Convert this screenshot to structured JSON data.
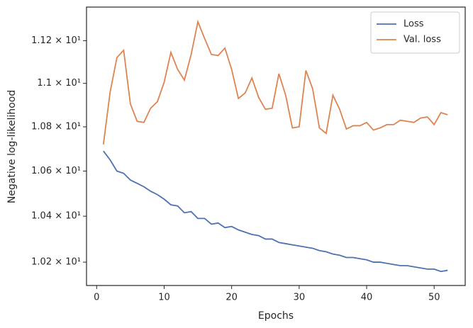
{
  "chart_data": {
    "type": "line",
    "xlabel": "Epochs",
    "ylabel": "Negative log-likelihood",
    "x": [
      1,
      2,
      3,
      4,
      5,
      6,
      7,
      8,
      9,
      10,
      11,
      12,
      13,
      14,
      15,
      16,
      17,
      18,
      19,
      20,
      21,
      22,
      23,
      24,
      25,
      26,
      27,
      28,
      29,
      30,
      31,
      32,
      33,
      34,
      35,
      36,
      37,
      38,
      39,
      40,
      41,
      42,
      43,
      44,
      45,
      46,
      47,
      48,
      49,
      50,
      51,
      52
    ],
    "series": [
      {
        "name": "Loss",
        "color": "#4c72b0",
        "values": [
          10.69,
          10.65,
          10.6,
          10.59,
          10.56,
          10.545,
          10.53,
          10.51,
          10.495,
          10.475,
          10.45,
          10.445,
          10.415,
          10.42,
          10.39,
          10.39,
          10.365,
          10.37,
          10.35,
          10.355,
          10.34,
          10.33,
          10.32,
          10.315,
          10.3,
          10.3,
          10.285,
          10.28,
          10.275,
          10.27,
          10.265,
          10.26,
          10.25,
          10.245,
          10.235,
          10.23,
          10.22,
          10.22,
          10.215,
          10.21,
          10.2,
          10.2,
          10.195,
          10.19,
          10.185,
          10.185,
          10.18,
          10.175,
          10.17,
          10.17,
          10.16,
          10.165
        ]
      },
      {
        "name": "Val. loss",
        "color": "#dd8452",
        "values": [
          10.72,
          10.96,
          11.12,
          11.155,
          10.905,
          10.825,
          10.82,
          10.885,
          10.915,
          11.005,
          11.145,
          11.065,
          11.015,
          11.135,
          11.29,
          11.21,
          11.135,
          11.13,
          11.165,
          11.065,
          10.93,
          10.955,
          11.025,
          10.935,
          10.88,
          10.885,
          11.045,
          10.945,
          10.795,
          10.8,
          11.06,
          10.975,
          10.795,
          10.77,
          10.945,
          10.88,
          10.79,
          10.805,
          10.805,
          10.82,
          10.785,
          10.795,
          10.81,
          10.81,
          10.83,
          10.825,
          10.82,
          10.84,
          10.845,
          10.81,
          10.865,
          10.855
        ]
      }
    ],
    "xlim": [
      -1.5,
      54.6
    ],
    "xticks": [
      0,
      10,
      20,
      30,
      40,
      50
    ],
    "ylim": [
      10.1,
      11.36
    ],
    "yscale": "log",
    "yticks": [
      {
        "value": 10.2,
        "label": "1.02 × 10¹"
      },
      {
        "value": 10.4,
        "label": "1.04 × 10¹"
      },
      {
        "value": 10.6,
        "label": "1.06 × 10¹"
      },
      {
        "value": 10.8,
        "label": "1.08 × 10¹"
      },
      {
        "value": 11.0,
        "label": "1.1 × 10¹"
      },
      {
        "value": 11.2,
        "label": "1.12 × 10¹"
      }
    ],
    "legend": "upper right"
  }
}
